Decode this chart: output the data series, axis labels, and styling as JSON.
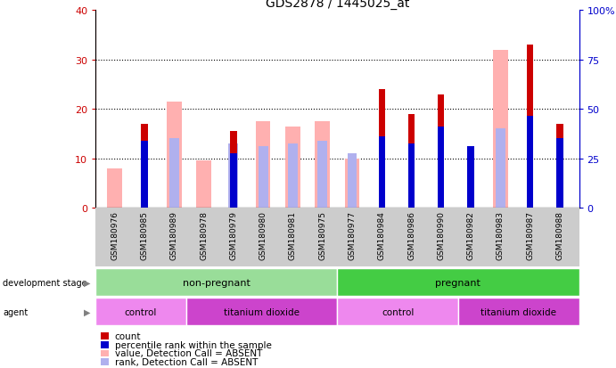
{
  "title": "GDS2878 / 1445025_at",
  "samples": [
    "GSM180976",
    "GSM180985",
    "GSM180989",
    "GSM180978",
    "GSM180979",
    "GSM180980",
    "GSM180981",
    "GSM180975",
    "GSM180977",
    "GSM180984",
    "GSM180986",
    "GSM180990",
    "GSM180982",
    "GSM180983",
    "GSM180987",
    "GSM180988"
  ],
  "count_red": [
    0,
    17,
    0,
    0,
    15.5,
    0,
    0,
    0,
    0,
    24,
    19,
    23,
    12,
    0,
    33,
    17
  ],
  "rank_blue": [
    0,
    13.5,
    0,
    0,
    11,
    0,
    0,
    0,
    0,
    14.5,
    13,
    16.5,
    12.5,
    0,
    18.5,
    14
  ],
  "value_absent_pink": [
    8,
    0,
    21.5,
    9.5,
    0,
    17.5,
    16.5,
    17.5,
    10,
    0,
    0,
    0,
    0,
    32,
    0,
    0
  ],
  "rank_absent_lblue": [
    0,
    0,
    14,
    0,
    13,
    12.5,
    13,
    13.5,
    11,
    0,
    0,
    0,
    0,
    16,
    0,
    0
  ],
  "ylim_left": [
    0,
    40
  ],
  "ylim_right": [
    0,
    100
  ],
  "yticks_left": [
    0,
    10,
    20,
    30,
    40
  ],
  "yticks_right": [
    0,
    25,
    50,
    75,
    100
  ],
  "color_red": "#cc0000",
  "color_blue": "#0000cc",
  "color_pink": "#ffb0b0",
  "color_lblue": "#b0b0ee",
  "color_green_light": "#99dd99",
  "color_green_dark": "#44cc44",
  "color_control": "#ee88ee",
  "color_tio2": "#cc44cc",
  "color_gray": "#cccccc",
  "dev_stage_groups": [
    {
      "label": "non-pregnant",
      "start": 0,
      "end": 8
    },
    {
      "label": "pregnant",
      "start": 8,
      "end": 16
    }
  ],
  "agent_groups": [
    {
      "label": "control",
      "start": 0,
      "end": 3
    },
    {
      "label": "titanium dioxide",
      "start": 3,
      "end": 8
    },
    {
      "label": "control",
      "start": 8,
      "end": 12
    },
    {
      "label": "titanium dioxide",
      "start": 12,
      "end": 16
    }
  ],
  "legend_items": [
    {
      "label": "count",
      "color": "#cc0000"
    },
    {
      "label": "percentile rank within the sample",
      "color": "#0000cc"
    },
    {
      "label": "value, Detection Call = ABSENT",
      "color": "#ffb0b0"
    },
    {
      "label": "rank, Detection Call = ABSENT",
      "color": "#b0b0ee"
    }
  ]
}
